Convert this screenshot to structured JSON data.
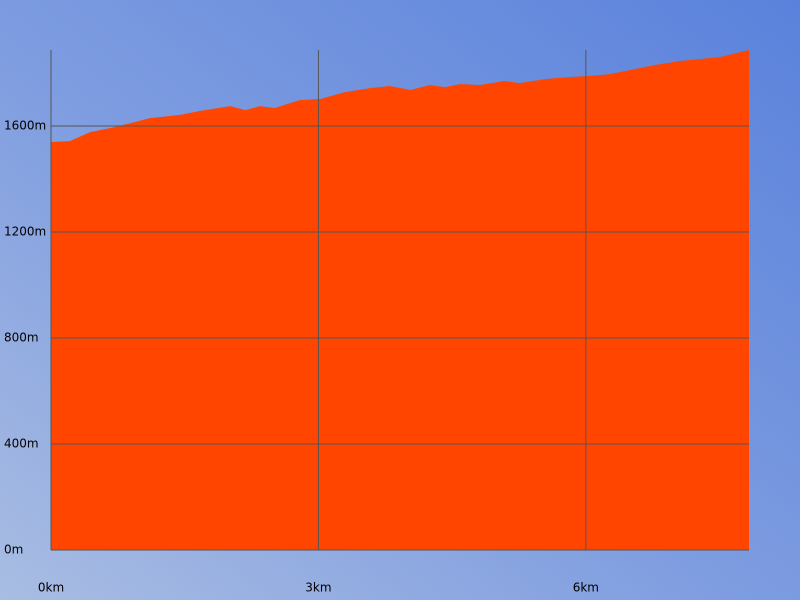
{
  "chart_data": {
    "type": "area",
    "x": [
      0,
      0.21,
      0.44,
      0.66,
      0.94,
      1.11,
      1.45,
      1.67,
      2.01,
      2.18,
      2.34,
      2.51,
      2.79,
      3.02,
      3.3,
      3.58,
      3.8,
      4.03,
      4.25,
      4.42,
      4.59,
      4.81,
      5.09,
      5.26,
      5.54,
      5.82,
      6.04,
      6.27,
      6.49,
      6.77,
      7.05,
      7.28,
      7.5,
      7.83
    ],
    "values": [
      1540,
      1543,
      1577,
      1592,
      1615,
      1630,
      1642,
      1657,
      1675,
      1660,
      1675,
      1668,
      1698,
      1702,
      1728,
      1743,
      1751,
      1736,
      1755,
      1747,
      1758,
      1755,
      1770,
      1762,
      1777,
      1785,
      1789,
      1796,
      1811,
      1830,
      1845,
      1853,
      1860,
      1887
    ],
    "color": "#ff4500",
    "xlim": [
      0,
      7.83
    ],
    "ylim": [
      0,
      1887
    ],
    "xticks": [
      {
        "value": 0,
        "label": "0km"
      },
      {
        "value": 3,
        "label": "3km"
      },
      {
        "value": 6,
        "label": "6km"
      }
    ],
    "yticks": [
      {
        "value": 0,
        "label": "0m"
      },
      {
        "value": 400,
        "label": "400m"
      },
      {
        "value": 800,
        "label": "800m"
      },
      {
        "value": 1200,
        "label": "1200m"
      },
      {
        "value": 1600,
        "label": "1600m"
      }
    ],
    "grid": true
  }
}
